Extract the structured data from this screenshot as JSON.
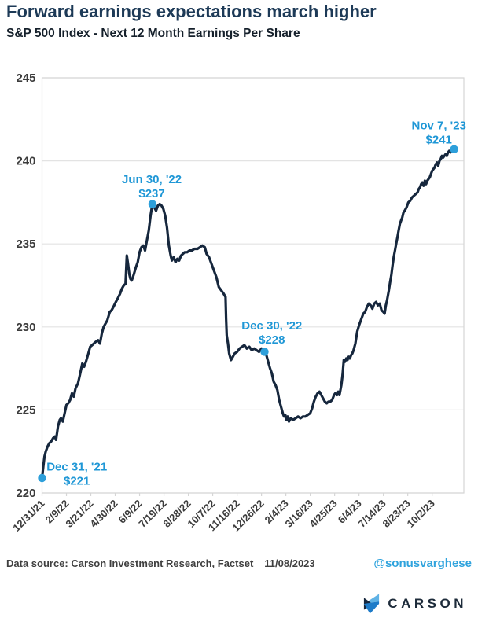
{
  "header": {
    "title": "Forward earnings expectations march higher",
    "subtitle": "S&P 500 Index - Next 12 Month Earnings Per Share"
  },
  "footer": {
    "source": "Data source: Carson Investment Research, Factset",
    "date": "11/08/2023",
    "handle": "@sonusvarghese",
    "logo_text": "CARSON"
  },
  "chart_data": {
    "type": "line",
    "title": "Forward earnings expectations march higher",
    "subtitle": "S&P 500 Index - Next 12 Month Earnings Per Share",
    "xlabel": "",
    "ylabel": "",
    "ylim": [
      220,
      245
    ],
    "xlim_days": [
      0,
      692
    ],
    "grid": "horizontal",
    "y_ticks": [
      220,
      225,
      230,
      235,
      240,
      245
    ],
    "x_tick_days": [
      0,
      40,
      80,
      120,
      160,
      200,
      240,
      280,
      320,
      360,
      400,
      440,
      480,
      520,
      560,
      600,
      640
    ],
    "x_tick_labels": [
      "12/31/21",
      "2/9/22",
      "3/21/22",
      "4/30/22",
      "6/9/22",
      "7/19/22",
      "8/28/22",
      "10/7/22",
      "11/16/22",
      "12/26/22",
      "2/4/23",
      "3/16/23",
      "4/25/23",
      "6/4/23",
      "7/14/23",
      "8/23/23",
      "10/2/23"
    ],
    "series": [
      {
        "name": "S&P 500 Next 12 Month EPS",
        "points": [
          [
            0,
            220.9
          ],
          [
            2,
            221.6
          ],
          [
            4,
            222.2
          ],
          [
            6,
            222.5
          ],
          [
            9,
            222.8
          ],
          [
            12,
            223.0
          ],
          [
            15,
            223.1
          ],
          [
            18,
            223.3
          ],
          [
            21,
            223.4
          ],
          [
            23,
            223.2
          ],
          [
            26,
            224.0
          ],
          [
            29,
            224.4
          ],
          [
            31,
            224.5
          ],
          [
            34,
            224.3
          ],
          [
            37,
            224.8
          ],
          [
            40,
            225.3
          ],
          [
            43,
            225.4
          ],
          [
            46,
            225.6
          ],
          [
            49,
            226.0
          ],
          [
            52,
            225.8
          ],
          [
            55,
            226.3
          ],
          [
            59,
            226.6
          ],
          [
            62,
            227.1
          ],
          [
            66,
            227.8
          ],
          [
            69,
            227.6
          ],
          [
            72,
            227.9
          ],
          [
            76,
            228.4
          ],
          [
            79,
            228.8
          ],
          [
            82,
            228.9
          ],
          [
            85,
            229.0
          ],
          [
            88,
            229.1
          ],
          [
            92,
            229.2
          ],
          [
            95,
            229.0
          ],
          [
            98,
            229.6
          ],
          [
            101,
            230.0
          ],
          [
            104,
            230.2
          ],
          [
            107,
            230.4
          ],
          [
            111,
            230.9
          ],
          [
            114,
            231.0
          ],
          [
            117,
            231.2
          ],
          [
            121,
            231.5
          ],
          [
            124,
            231.7
          ],
          [
            128,
            232.0
          ],
          [
            131,
            232.3
          ],
          [
            134,
            232.5
          ],
          [
            137,
            232.6
          ],
          [
            139,
            234.3
          ],
          [
            141,
            233.8
          ],
          [
            143,
            233.2
          ],
          [
            145,
            232.9
          ],
          [
            147,
            232.8
          ],
          [
            150,
            233.1
          ],
          [
            154,
            233.6
          ],
          [
            157,
            233.9
          ],
          [
            160,
            234.5
          ],
          [
            163,
            234.8
          ],
          [
            166,
            234.9
          ],
          [
            169,
            234.6
          ],
          [
            172,
            235.2
          ],
          [
            175,
            235.8
          ],
          [
            178,
            236.7
          ],
          [
            181,
            237.4
          ],
          [
            184,
            237.2
          ],
          [
            187,
            237.0
          ],
          [
            190,
            237.3
          ],
          [
            193,
            237.4
          ],
          [
            196,
            237.3
          ],
          [
            199,
            237.1
          ],
          [
            202,
            236.7
          ],
          [
            205,
            236.0
          ],
          [
            208,
            234.9
          ],
          [
            211,
            234.3
          ],
          [
            213,
            234.0
          ],
          [
            216,
            234.2
          ],
          [
            219,
            233.9
          ],
          [
            222,
            234.1
          ],
          [
            225,
            234.0
          ],
          [
            228,
            234.3
          ],
          [
            231,
            234.4
          ],
          [
            234,
            234.5
          ],
          [
            238,
            234.5
          ],
          [
            242,
            234.6
          ],
          [
            246,
            234.6
          ],
          [
            250,
            234.7
          ],
          [
            255,
            234.7
          ],
          [
            259,
            234.8
          ],
          [
            263,
            234.9
          ],
          [
            267,
            234.8
          ],
          [
            270,
            234.4
          ],
          [
            274,
            234.2
          ],
          [
            278,
            233.8
          ],
          [
            282,
            233.4
          ],
          [
            286,
            233.0
          ],
          [
            290,
            232.4
          ],
          [
            294,
            232.2
          ],
          [
            298,
            232.0
          ],
          [
            301,
            231.8
          ],
          [
            302,
            230.5
          ],
          [
            303,
            229.5
          ],
          [
            305,
            229.0
          ],
          [
            307,
            228.4
          ],
          [
            310,
            228.0
          ],
          [
            313,
            228.2
          ],
          [
            316,
            228.4
          ],
          [
            320,
            228.5
          ],
          [
            324,
            228.7
          ],
          [
            328,
            228.8
          ],
          [
            332,
            228.9
          ],
          [
            336,
            228.7
          ],
          [
            340,
            228.8
          ],
          [
            344,
            228.6
          ],
          [
            348,
            228.7
          ],
          [
            352,
            228.6
          ],
          [
            356,
            228.5
          ],
          [
            360,
            228.7
          ],
          [
            365,
            228.5
          ],
          [
            368,
            228.3
          ],
          [
            371,
            227.9
          ],
          [
            374,
            227.5
          ],
          [
            377,
            227.2
          ],
          [
            380,
            226.7
          ],
          [
            383,
            226.5
          ],
          [
            386,
            226.2
          ],
          [
            389,
            225.6
          ],
          [
            392,
            225.2
          ],
          [
            395,
            224.8
          ],
          [
            397,
            224.6
          ],
          [
            399,
            224.7
          ],
          [
            401,
            224.4
          ],
          [
            403,
            224.6
          ],
          [
            405,
            224.3
          ],
          [
            408,
            224.5
          ],
          [
            412,
            224.4
          ],
          [
            416,
            224.5
          ],
          [
            420,
            224.6
          ],
          [
            424,
            224.5
          ],
          [
            428,
            224.6
          ],
          [
            432,
            224.6
          ],
          [
            436,
            224.7
          ],
          [
            440,
            224.8
          ],
          [
            443,
            225.1
          ],
          [
            446,
            225.5
          ],
          [
            449,
            225.8
          ],
          [
            452,
            226.0
          ],
          [
            455,
            226.1
          ],
          [
            458,
            225.9
          ],
          [
            461,
            225.7
          ],
          [
            464,
            225.5
          ],
          [
            467,
            225.4
          ],
          [
            470,
            225.5
          ],
          [
            473,
            225.5
          ],
          [
            476,
            225.6
          ],
          [
            479,
            225.9
          ],
          [
            481,
            226.0
          ],
          [
            484,
            225.9
          ],
          [
            486,
            226.1
          ],
          [
            488,
            225.9
          ],
          [
            491,
            226.5
          ],
          [
            493,
            227.1
          ],
          [
            495,
            228.0
          ],
          [
            497,
            227.9
          ],
          [
            499,
            228.1
          ],
          [
            501,
            228.0
          ],
          [
            503,
            228.2
          ],
          [
            505,
            228.1
          ],
          [
            507,
            228.3
          ],
          [
            509,
            228.4
          ],
          [
            511,
            228.6
          ],
          [
            514,
            229.0
          ],
          [
            517,
            229.7
          ],
          [
            520,
            230.1
          ],
          [
            524,
            230.5
          ],
          [
            527,
            230.8
          ],
          [
            530,
            230.9
          ],
          [
            533,
            231.2
          ],
          [
            536,
            231.4
          ],
          [
            539,
            231.3
          ],
          [
            542,
            231.1
          ],
          [
            545,
            231.4
          ],
          [
            548,
            231.5
          ],
          [
            551,
            231.3
          ],
          [
            554,
            231.4
          ],
          [
            557,
            231.0
          ],
          [
            560,
            230.9
          ],
          [
            562,
            230.8
          ],
          [
            564,
            231.3
          ],
          [
            566,
            231.6
          ],
          [
            569,
            232.2
          ],
          [
            571,
            232.7
          ],
          [
            573,
            233.1
          ],
          [
            575,
            233.7
          ],
          [
            577,
            234.2
          ],
          [
            579,
            234.6
          ],
          [
            581,
            235.0
          ],
          [
            583,
            235.4
          ],
          [
            585,
            235.8
          ],
          [
            587,
            236.2
          ],
          [
            589,
            236.4
          ],
          [
            591,
            236.6
          ],
          [
            593,
            236.9
          ],
          [
            595,
            237.0
          ],
          [
            598,
            237.2
          ],
          [
            601,
            237.5
          ],
          [
            604,
            237.6
          ],
          [
            607,
            237.8
          ],
          [
            610,
            237.9
          ],
          [
            613,
            238.0
          ],
          [
            616,
            238.1
          ],
          [
            618,
            238.3
          ],
          [
            620,
            238.4
          ],
          [
            622,
            238.6
          ],
          [
            624,
            238.7
          ],
          [
            626,
            238.5
          ],
          [
            628,
            238.8
          ],
          [
            630,
            238.6
          ],
          [
            632,
            238.8
          ],
          [
            634,
            238.9
          ],
          [
            636,
            239.0
          ],
          [
            638,
            239.2
          ],
          [
            640,
            239.4
          ],
          [
            642,
            239.5
          ],
          [
            644,
            239.6
          ],
          [
            646,
            239.8
          ],
          [
            648,
            239.9
          ],
          [
            650,
            239.7
          ],
          [
            652,
            240.0
          ],
          [
            654,
            240.1
          ],
          [
            656,
            240.3
          ],
          [
            658,
            240.2
          ],
          [
            660,
            240.3
          ],
          [
            662,
            240.4
          ],
          [
            664,
            240.3
          ],
          [
            666,
            240.5
          ],
          [
            668,
            240.6
          ],
          [
            670,
            240.5
          ],
          [
            672,
            240.7
          ],
          [
            674,
            240.6
          ],
          [
            676,
            240.7
          ]
        ]
      }
    ],
    "annotations": [
      {
        "line1": "Dec 31, '21",
        "line2": "$221",
        "marker_day": 0,
        "marker_value": 220.9,
        "text_day": 57,
        "text_value": 221.35
      },
      {
        "line1": "Jun 30, '22",
        "line2": "$237",
        "marker_day": 181,
        "marker_value": 237.4,
        "text_day": 180,
        "text_value": 238.65
      },
      {
        "line1": "Dec 30, '22",
        "line2": "$228",
        "marker_day": 365,
        "marker_value": 228.5,
        "text_day": 377,
        "text_value": 229.85
      },
      {
        "line1": "Nov 7, '23",
        "line2": "$241",
        "marker_day": 676,
        "marker_value": 240.7,
        "text_day": 651,
        "text_value": 241.9
      }
    ],
    "colors": {
      "line": "#16273d",
      "marker": "#2d9fda",
      "annotation": "#1f97d6",
      "grid": "#e3e3e3",
      "axis_border": "#d6d6d6",
      "tick_label": "#3c3c3c",
      "title": "#1d3a57",
      "handle": "#2fa3dd",
      "logo_light": "#5fb2e5",
      "logo_mid": "#1e7bc8",
      "logo_dark": "#16273d"
    }
  }
}
